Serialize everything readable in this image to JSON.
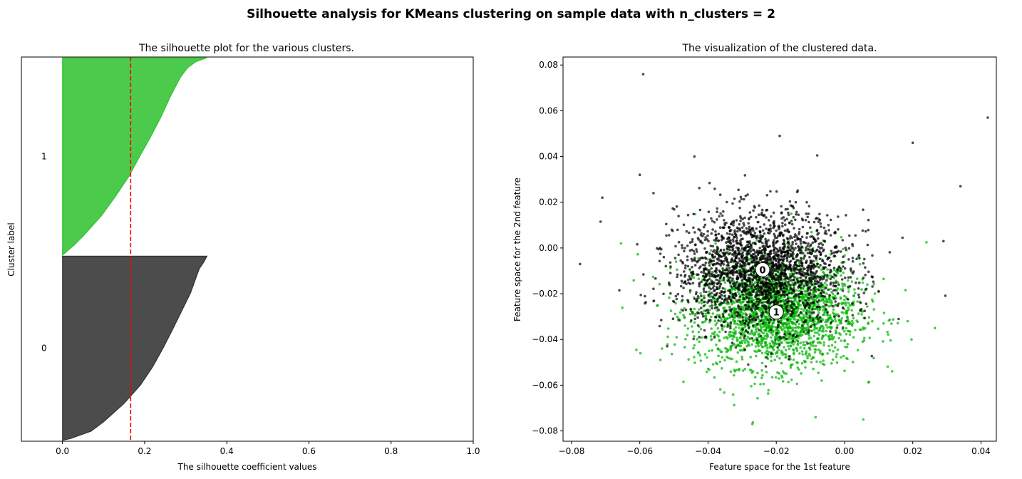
{
  "suptitle": "Silhouette analysis for KMeans clustering on sample data with n_clusters = 2",
  "colors": {
    "cluster0": "#000000",
    "cluster1": "#00b400",
    "avg_line": "#ff0000",
    "centroid_fill": "#ffffff"
  },
  "chart_data": [
    {
      "type": "area",
      "title": "The silhouette plot for the various clusters.",
      "xlabel": "The silhouette coefficient values",
      "ylabel": "Cluster label",
      "xlim": [
        -0.1,
        1.0
      ],
      "ylim": [
        0,
        5000
      ],
      "xticks": [
        0.0,
        0.2,
        0.4,
        0.6,
        0.8,
        1.0
      ],
      "xtick_labels": [
        "0.0",
        "0.2",
        "0.4",
        "0.6",
        "0.8",
        "1.0"
      ],
      "avg_silhouette": 0.166,
      "clusters": [
        {
          "label": "0",
          "y_range": [
            10,
            2410
          ],
          "color": "#000000",
          "profile": [
            [
              0.0,
              0.0
            ],
            [
              0.01,
              0.02
            ],
            [
              0.05,
              0.07
            ],
            [
              0.1,
              0.1
            ],
            [
              0.2,
              0.15
            ],
            [
              0.3,
              0.19
            ],
            [
              0.4,
              0.22
            ],
            [
              0.5,
              0.245
            ],
            [
              0.6,
              0.268
            ],
            [
              0.7,
              0.29
            ],
            [
              0.8,
              0.312
            ],
            [
              0.88,
              0.325
            ],
            [
              0.93,
              0.333
            ],
            [
              0.97,
              0.345
            ],
            [
              1.0,
              0.352
            ]
          ]
        },
        {
          "label": "1",
          "y_range": [
            2420,
            4990
          ],
          "color": "#00b400",
          "profile": [
            [
              0.0,
              0.0
            ],
            [
              0.05,
              0.028
            ],
            [
              0.1,
              0.052
            ],
            [
              0.2,
              0.095
            ],
            [
              0.3,
              0.13
            ],
            [
              0.4,
              0.162
            ],
            [
              0.5,
              0.188
            ],
            [
              0.6,
              0.215
            ],
            [
              0.7,
              0.24
            ],
            [
              0.8,
              0.262
            ],
            [
              0.9,
              0.287
            ],
            [
              0.95,
              0.305
            ],
            [
              0.98,
              0.325
            ],
            [
              1.0,
              0.352
            ]
          ]
        }
      ]
    },
    {
      "type": "scatter",
      "title": "The visualization of the clustered data.",
      "xlabel": "Feature space for the 1st feature",
      "ylabel": "Feature space for the 2nd feature",
      "xlim": [
        -0.0825,
        0.0445
      ],
      "ylim": [
        -0.0845,
        0.0835
      ],
      "xticks": [
        -0.08,
        -0.06,
        -0.04,
        -0.02,
        0.0,
        0.02,
        0.04
      ],
      "xtick_labels": [
        "−0.08",
        "−0.06",
        "−0.04",
        "−0.02",
        "0.00",
        "0.02",
        "0.04"
      ],
      "yticks": [
        -0.08,
        -0.06,
        -0.04,
        -0.02,
        0.0,
        0.02,
        0.04,
        0.06,
        0.08
      ],
      "ytick_labels": [
        "−0.08",
        "−0.06",
        "−0.04",
        "−0.02",
        "0.00",
        "0.02",
        "0.04",
        "0.06",
        "0.08"
      ],
      "centers": [
        {
          "label": "0",
          "x": -0.024,
          "y": -0.0095
        },
        {
          "label": "1",
          "x": -0.02,
          "y": -0.028
        }
      ],
      "series": [
        {
          "name": "cluster 0",
          "color": "#000000",
          "center": [
            -0.024,
            -0.0095
          ],
          "spread": [
            0.0125,
            0.0125
          ],
          "count": 2200,
          "outliers": [
            [
              -0.059,
              0.076
            ],
            [
              0.042,
              0.057
            ],
            [
              0.034,
              0.027
            ],
            [
              0.02,
              0.046
            ],
            [
              -0.0775,
              -0.007
            ],
            [
              -0.071,
              0.022
            ],
            [
              -0.0715,
              0.0115
            ],
            [
              -0.066,
              -0.0185
            ],
            [
              -0.044,
              0.04
            ],
            [
              -0.019,
              0.049
            ],
            [
              0.029,
              0.003
            ],
            [
              -0.06,
              0.032
            ],
            [
              -0.056,
              0.024
            ],
            [
              -0.008,
              0.0405
            ],
            [
              0.017,
              0.0045
            ]
          ]
        },
        {
          "name": "cluster 1",
          "color": "#00b400",
          "center": [
            -0.02,
            -0.028
          ],
          "spread": [
            0.012,
            0.012
          ],
          "count": 2300,
          "outliers": [
            [
              -0.027,
              -0.077
            ],
            [
              0.0055,
              -0.075
            ],
            [
              -0.0085,
              -0.074
            ],
            [
              0.0265,
              -0.035
            ],
            [
              0.024,
              0.0025
            ],
            [
              -0.0655,
              0.002
            ],
            [
              -0.061,
              -0.0445
            ],
            [
              0.0185,
              -0.032
            ]
          ]
        }
      ]
    }
  ]
}
